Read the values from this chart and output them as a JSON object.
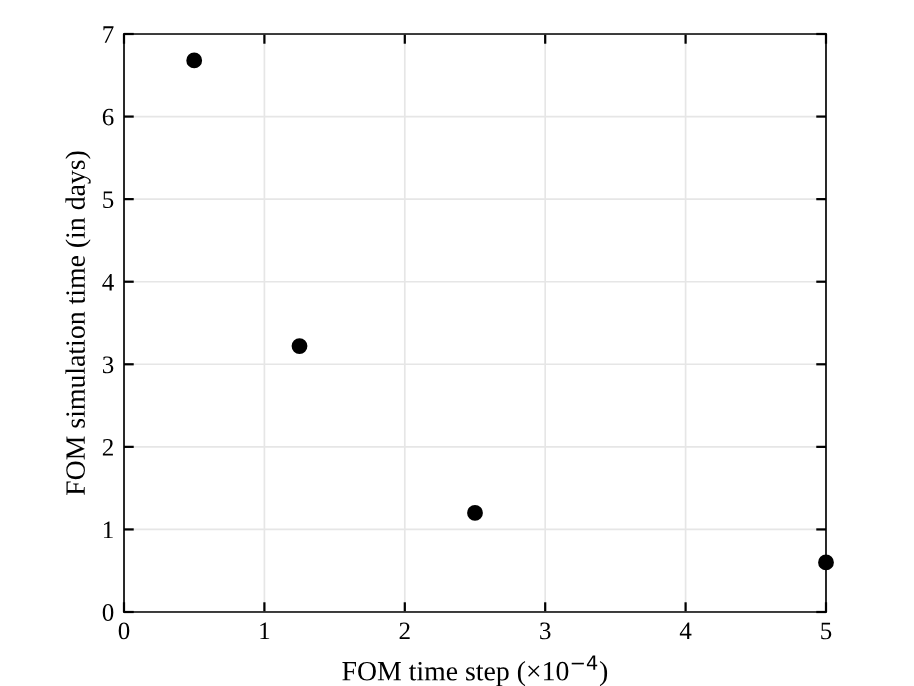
{
  "chart_data": {
    "type": "scatter",
    "xlabel": "FOM time step (×10$^{−4}$)",
    "ylabel": "FOM simulation time (in days)",
    "x": [
      0.5,
      1.25,
      2.5,
      5
    ],
    "series": [
      {
        "color": "#000000",
        "values": [
          6.68,
          3.22,
          1.2,
          0.6
        ]
      }
    ],
    "xlim": [
      0,
      5
    ],
    "ylim": [
      0,
      7
    ],
    "xticks": [
      0,
      1,
      2,
      3,
      4,
      5
    ],
    "yticks": [
      0,
      1,
      2,
      3,
      4,
      5,
      6,
      7
    ],
    "grid": true,
    "marker": "circle"
  }
}
